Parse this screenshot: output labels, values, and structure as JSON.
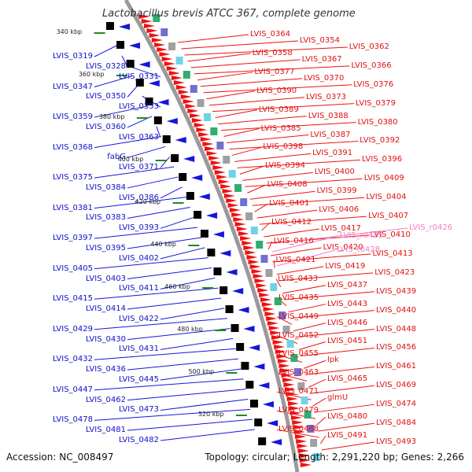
{
  "title": "Lactobacillus brevis ATCC 367, complete genome",
  "footer": {
    "accession": "Accession: NC_008497",
    "topology": "Topology: circular; Length: 2,291,220 bp; Genes: 2,266"
  },
  "colors": {
    "reverse_strand_label": "#1010c8",
    "forward_strand_label": "#e01010",
    "rrna_label": "#f080c0",
    "forward_arrow": "#ee1111",
    "reverse_arrow": "#1515dd",
    "backbone": "#9a9a9a",
    "tick": "#1f8a1f"
  },
  "scale_ticks": [
    "340 kbp",
    "360 kbp",
    "380 kbp",
    "400 kbp",
    "420 kbp",
    "440 kbp",
    "460 kbp",
    "480 kbp",
    "500 kbp",
    "520 kbp"
  ],
  "reverse_genes": [
    "LVIS_0319",
    "LVIS_0328",
    "LVIS_0331",
    "LVIS_0347",
    "LVIS_0350",
    "LVIS_0353",
    "LVIS_0359",
    "LVIS_0360",
    "LVIS_0363",
    "LVIS_0368",
    "fabG",
    "LVIS_0371",
    "LVIS_0375",
    "LVIS_0384",
    "LVIS_0386",
    "LVIS_0381",
    "LVIS_0383",
    "LVIS_0393",
    "LVIS_0397",
    "LVIS_0395",
    "LVIS_0402",
    "LVIS_0405",
    "LVIS_0403",
    "LVIS_0411",
    "LVIS_0415",
    "LVIS_0414",
    "LVIS_0422",
    "LVIS_0429",
    "LVIS_0430",
    "LVIS_0431",
    "LVIS_0432",
    "LVIS_0436",
    "LVIS_0445",
    "LVIS_0447",
    "LVIS_0462",
    "LVIS_0473",
    "LVIS_0478",
    "LVIS_0481",
    "LVIS_0482"
  ],
  "forward_genes": [
    "LVIS_0364",
    "LVIS_0354",
    "LVIS_0362",
    "LVIS_0358",
    "LVIS_0367",
    "LVIS_0366",
    "LVIS_0377",
    "LVIS_0370",
    "LVIS_0376",
    "LVIS_0390",
    "LVIS_0373",
    "LVIS_0379",
    "LVIS_0389",
    "LVIS_0388",
    "LVIS_0380",
    "LVIS_0385",
    "LVIS_0387",
    "LVIS_0392",
    "LVIS_0398",
    "LVIS_0391",
    "LVIS_0396",
    "LVIS_0394",
    "LVIS_0400",
    "LVIS_0409",
    "LVIS_0408",
    "LVIS_0399",
    "LVIS_0404",
    "LVIS_0401",
    "LVIS_0406",
    "LVIS_0407",
    "LVIS_0412",
    "LVIS_0417",
    "LVIS_0410",
    "LVIS_0416",
    "LVIS_0420",
    "LVIS_0413",
    "LVIS_0421",
    "LVIS_0419",
    "LVIS_0423",
    "LVIS_0433",
    "LVIS_0437",
    "LVIS_0439",
    "LVIS_0435",
    "LVIS_0443",
    "LVIS_0440",
    "LVIS_0449",
    "LVIS_0446",
    "LVIS_0448",
    "LVIS_0452",
    "LVIS_0451",
    "LVIS_0456",
    "LVIS_0455",
    "lpk",
    "LVIS_0461",
    "LVIS_0463",
    "LVIS_0465",
    "LVIS_0469",
    "LVIS_0471",
    "glmU",
    "LVIS_0474",
    "LVIS_0479",
    "LVIS_0480",
    "LVIS_0484",
    "LVIS_0488",
    "LVIS_0491",
    "LVIS_0493"
  ],
  "rrna_genes": [
    "LVIS_r0426",
    "LVIS_r0425",
    "LVIS_t0428"
  ]
}
